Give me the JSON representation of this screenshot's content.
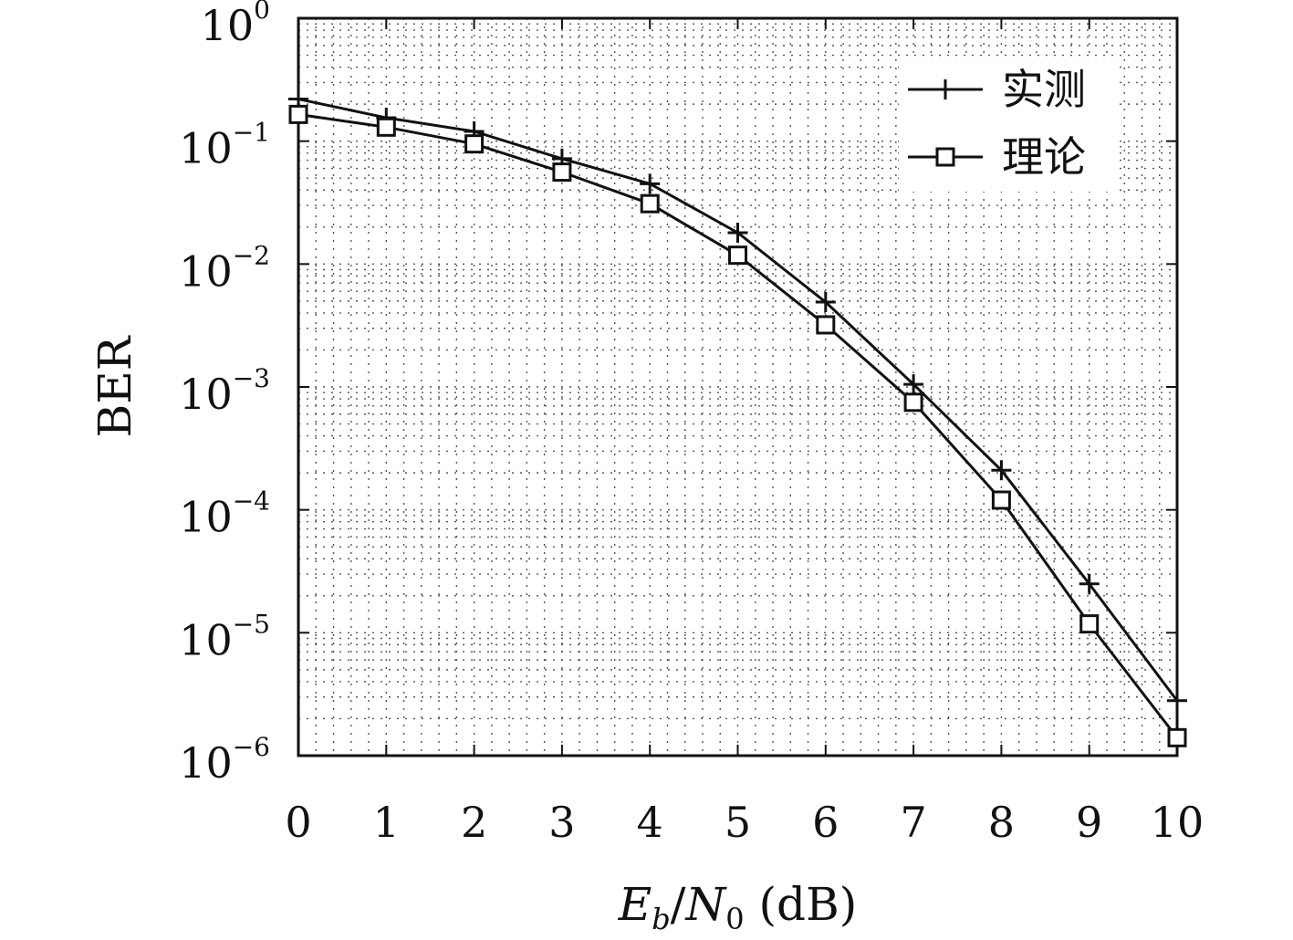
{
  "chart_data": {
    "type": "line",
    "x": [
      0,
      1,
      2,
      3,
      4,
      5,
      6,
      7,
      8,
      9,
      10
    ],
    "xlim": [
      0,
      10
    ],
    "x_ticks": [
      "0",
      "1",
      "2",
      "3",
      "4",
      "5",
      "6",
      "7",
      "8",
      "9",
      "10"
    ],
    "ylim": [
      1e-06,
      1
    ],
    "y_scale": "log",
    "y_ticks": [
      {
        "base": "10",
        "exp": "0"
      },
      {
        "base": "10",
        "exp": "−1"
      },
      {
        "base": "10",
        "exp": "−2"
      },
      {
        "base": "10",
        "exp": "−3"
      },
      {
        "base": "10",
        "exp": "−4"
      },
      {
        "base": "10",
        "exp": "−5"
      },
      {
        "base": "10",
        "exp": "−6"
      }
    ],
    "xlabel": "E_b/N_0 (dB)",
    "ylabel": "BER",
    "grid": true,
    "legend_position": "top-right",
    "series": [
      {
        "name": "实测",
        "marker": "plus",
        "color": "#111111",
        "values": [
          0.22,
          0.155,
          0.12,
          0.072,
          0.045,
          0.018,
          0.0049,
          0.00105,
          0.00021,
          2.5e-05,
          2.8e-06
        ]
      },
      {
        "name": "理论",
        "marker": "square",
        "color": "#111111",
        "values": [
          0.165,
          0.13,
          0.095,
          0.056,
          0.031,
          0.0118,
          0.0032,
          0.00075,
          0.00012,
          1.18e-05,
          1.4e-06
        ]
      }
    ]
  }
}
